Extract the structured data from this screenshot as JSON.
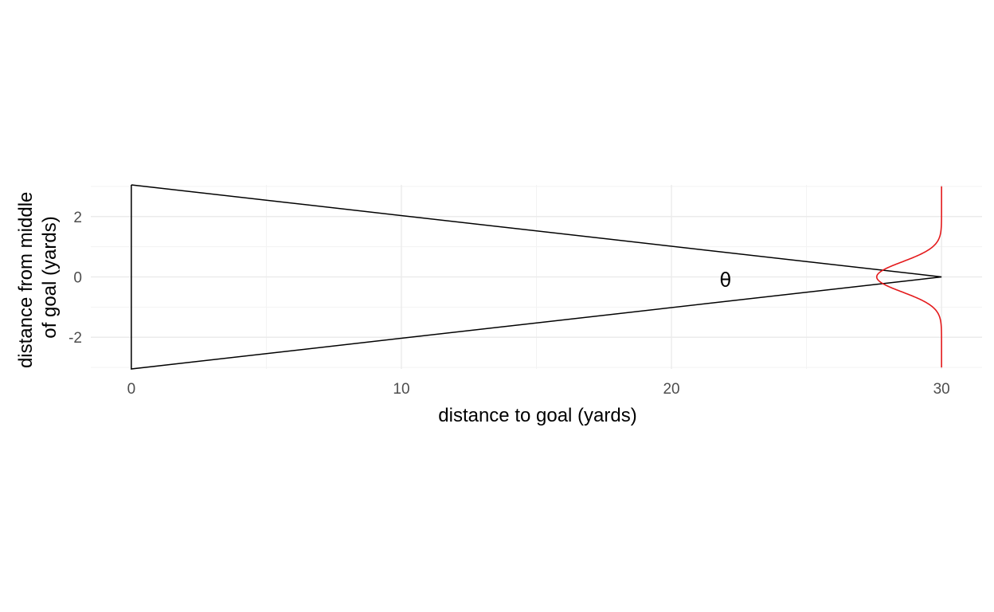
{
  "chart_data": {
    "type": "line",
    "xlabel": "distance to goal (yards)",
    "ylabel_lines": [
      "distance from middle",
      "of goal (yards)"
    ],
    "xlim": [
      -1.5,
      31.5
    ],
    "ylim": [
      -3.05,
      3.05
    ],
    "x_ticks": [
      0,
      10,
      20,
      30
    ],
    "x_tick_labels": [
      "0",
      "10",
      "20",
      "30"
    ],
    "x_minor_ticks": [
      5,
      15,
      25
    ],
    "y_ticks": [
      -2,
      0,
      2
    ],
    "y_tick_labels": [
      "-2",
      "0",
      "2"
    ],
    "y_minor_ticks": [
      -3,
      -1,
      1,
      3
    ],
    "grid": true,
    "series": [
      {
        "kind": "polygon",
        "color": "#000000",
        "points": [
          [
            0,
            3.05
          ],
          [
            30,
            0
          ],
          [
            0,
            -3.05
          ],
          [
            0,
            3.05
          ]
        ]
      },
      {
        "kind": "density_curve",
        "color": "#e41a1c",
        "baseline_x": 30,
        "amplitude": 2.4,
        "sd": 0.5,
        "y_range": [
          -3,
          3
        ]
      }
    ],
    "annotations": [
      {
        "text": "θ",
        "x": 22,
        "y": -0.1
      }
    ]
  }
}
